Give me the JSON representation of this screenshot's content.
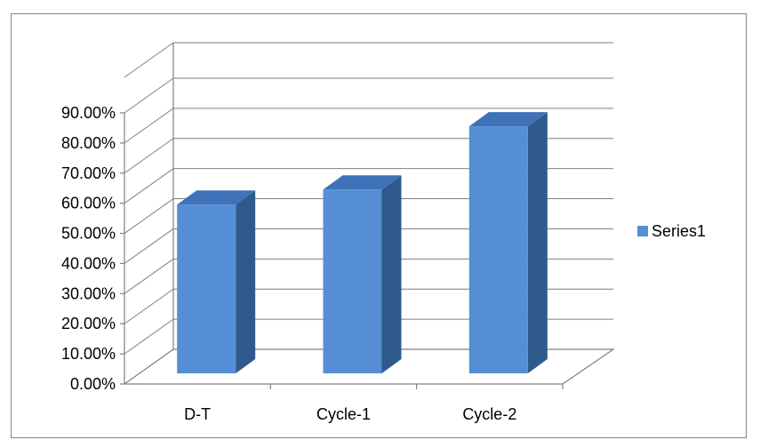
{
  "chart_data": {
    "type": "bar",
    "style": "3d-column",
    "categories": [
      "D-T",
      "Cycle-1",
      "Cycle-2"
    ],
    "series": [
      {
        "name": "Series1",
        "values": [
          0.56,
          0.61,
          0.82
        ],
        "color": "#558ED5",
        "side_color": "#2F5A8D",
        "top_color": "#3F72B8"
      }
    ],
    "ylim": [
      0,
      0.9
    ],
    "yticks": [
      0,
      0.1,
      0.2,
      0.3,
      0.4,
      0.5,
      0.6,
      0.7,
      0.8,
      0.9
    ],
    "ytick_labels": [
      "0.00%",
      "10.00%",
      "20.00%",
      "30.00%",
      "40.00%",
      "50.00%",
      "60.00%",
      "70.00%",
      "80.00%",
      "90.00%"
    ],
    "grid": true,
    "legend_position": "right",
    "title": "",
    "xlabel": "",
    "ylabel": ""
  }
}
